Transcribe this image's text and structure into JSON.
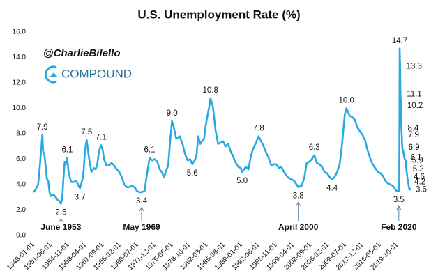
{
  "chart_data": {
    "type": "line",
    "title": "U.S. Unemployment Rate (%)",
    "watermark": {
      "handle": "@CharlieBilello",
      "company": "COMPOUND"
    },
    "xlim": [
      "1948-01-01",
      "2022-08-01"
    ],
    "xticks": [
      "1948-01-01",
      "1951-06-01",
      "1954-11-01",
      "1958-04-01",
      "1961-09-01",
      "1965-02-01",
      "1968-07-01",
      "1971-12-01",
      "1975-05-01",
      "1978-10-01",
      "1982-03-01",
      "1985-08-01",
      "1989-01-01",
      "1992-06-01",
      "1995-11-01",
      "1999-04-01",
      "2002-09-01",
      "2006-02-01",
      "2009-07-01",
      "2012-12-01",
      "2016-05-01",
      "2019-10-01"
    ],
    "ylim": [
      0,
      16
    ],
    "yticks": [
      {
        "value": 0,
        "label": "0.0"
      },
      {
        "value": 2,
        "label": "2.0"
      },
      {
        "value": 4,
        "label": "4.0"
      },
      {
        "value": 6,
        "label": "6.0"
      },
      {
        "value": 8,
        "label": "8.0"
      },
      {
        "value": 10,
        "label": "10.0"
      },
      {
        "value": 12,
        "label": "12.0"
      },
      {
        "value": 14,
        "label": "14.0"
      },
      {
        "value": 16,
        "label": "16.0"
      }
    ],
    "grid": false,
    "x": [
      "1948-01-01",
      "1948-06-01",
      "1948-12-01",
      "1949-03-01",
      "1949-07-01",
      "1949-10-01",
      "1949-12-01",
      "1950-03-01",
      "1950-06-01",
      "1950-09-01",
      "1950-12-01",
      "1951-03-01",
      "1951-06-01",
      "1951-09-01",
      "1952-01-01",
      "1952-06-01",
      "1952-10-01",
      "1953-03-01",
      "1953-06-01",
      "1953-09-01",
      "1953-12-01",
      "1954-03-01",
      "1954-06-01",
      "1954-09-01",
      "1954-12-01",
      "1955-06-01",
      "1955-12-01",
      "1956-06-01",
      "1957-03-01",
      "1957-09-01",
      "1957-12-01",
      "1958-03-01",
      "1958-07-01",
      "1958-10-01",
      "1959-01-01",
      "1959-06-01",
      "1959-12-01",
      "1960-04-01",
      "1960-08-01",
      "1960-12-01",
      "1961-05-01",
      "1961-09-01",
      "1961-12-01",
      "1962-06-01",
      "1962-12-01",
      "1963-06-01",
      "1963-12-01",
      "1964-06-01",
      "1964-12-01",
      "1965-06-01",
      "1965-12-01",
      "1966-06-01",
      "1966-12-01",
      "1967-06-01",
      "1967-12-01",
      "1968-06-01",
      "1968-12-01",
      "1969-05-01",
      "1969-12-01",
      "1970-06-01",
      "1970-12-01",
      "1971-06-01",
      "1971-12-01",
      "1972-06-01",
      "1972-12-01",
      "1973-06-01",
      "1973-10-01",
      "1974-03-01",
      "1974-08-01",
      "1974-12-01",
      "1975-05-01",
      "1975-10-01",
      "1976-03-01",
      "1976-11-01",
      "1977-06-01",
      "1977-12-01",
      "1978-06-01",
      "1978-12-01",
      "1979-05-01",
      "1979-12-01",
      "1980-03-01",
      "1980-07-01",
      "1980-12-01",
      "1981-06-01",
      "1981-09-01",
      "1981-12-01",
      "1982-06-01",
      "1982-09-01",
      "1982-12-01",
      "1983-06-01",
      "1983-12-01",
      "1984-06-01",
      "1984-12-01",
      "1985-06-01",
      "1985-12-01",
      "1986-06-01",
      "1986-12-01",
      "1987-06-01",
      "1987-12-01",
      "1988-06-01",
      "1988-12-01",
      "1989-03-01",
      "1989-12-01",
      "1990-06-01",
      "1990-12-01",
      "1991-06-01",
      "1991-12-01",
      "1992-06-01",
      "1992-12-01",
      "1993-06-01",
      "1993-12-01",
      "1994-06-01",
      "1994-12-01",
      "1995-06-01",
      "1995-12-01",
      "1996-06-01",
      "1996-12-01",
      "1997-06-01",
      "1997-12-01",
      "1998-06-01",
      "1998-12-01",
      "1999-06-01",
      "1999-12-01",
      "2000-04-01",
      "2000-12-01",
      "2001-06-01",
      "2001-12-01",
      "2002-06-01",
      "2002-12-01",
      "2003-06-01",
      "2003-12-01",
      "2004-06-01",
      "2004-12-01",
      "2005-06-01",
      "2005-12-01",
      "2006-06-01",
      "2006-12-01",
      "2007-06-01",
      "2007-12-01",
      "2008-06-01",
      "2008-12-01",
      "2009-06-01",
      "2009-10-01",
      "2010-06-01",
      "2010-12-01",
      "2011-06-01",
      "2011-12-01",
      "2012-06-01",
      "2012-12-01",
      "2013-06-01",
      "2013-12-01",
      "2014-06-01",
      "2014-12-01",
      "2015-06-01",
      "2015-12-01",
      "2016-06-01",
      "2016-12-01",
      "2017-06-01",
      "2017-12-01",
      "2018-06-01",
      "2018-12-01",
      "2019-06-01",
      "2019-09-01",
      "2020-02-01",
      "2020-03-01",
      "2020-04-01",
      "2020-05-01",
      "2020-06-01",
      "2020-07-01",
      "2020-08-01",
      "2020-09-01",
      "2020-10-01",
      "2020-12-01",
      "2021-03-01",
      "2021-06-01",
      "2021-08-01",
      "2021-10-01",
      "2021-12-01",
      "2022-03-01",
      "2022-08-01"
    ],
    "series": [
      {
        "name": "Unemployment Rate",
        "color": "#29a9e1",
        "values": [
          3.4,
          3.6,
          4.0,
          5.0,
          6.7,
          7.9,
          6.6,
          6.3,
          5.4,
          4.4,
          4.3,
          3.4,
          3.1,
          3.2,
          3.2,
          3.0,
          2.8,
          2.7,
          2.5,
          2.9,
          4.5,
          5.8,
          5.6,
          6.1,
          5.0,
          4.2,
          4.2,
          4.3,
          3.7,
          4.4,
          5.2,
          6.7,
          7.5,
          6.7,
          6.0,
          5.0,
          5.3,
          5.2,
          5.6,
          6.6,
          7.1,
          6.7,
          6.0,
          5.5,
          5.5,
          5.7,
          5.5,
          5.2,
          5.0,
          4.6,
          4.0,
          3.8,
          3.8,
          3.9,
          3.8,
          3.5,
          3.4,
          3.4,
          3.5,
          4.9,
          6.1,
          5.9,
          6.0,
          5.8,
          5.2,
          4.9,
          4.6,
          5.1,
          5.5,
          7.2,
          9.0,
          8.4,
          7.6,
          7.8,
          7.2,
          6.4,
          5.9,
          6.0,
          5.6,
          6.0,
          6.3,
          7.8,
          7.2,
          7.5,
          7.6,
          8.5,
          9.6,
          10.1,
          10.8,
          10.1,
          8.3,
          7.2,
          7.3,
          7.4,
          7.0,
          7.2,
          6.6,
          6.2,
          5.7,
          5.4,
          5.3,
          5.0,
          5.4,
          5.2,
          6.3,
          6.9,
          7.3,
          7.8,
          7.4,
          7.0,
          6.5,
          6.1,
          5.5,
          5.6,
          5.6,
          5.3,
          5.4,
          5.0,
          4.7,
          4.5,
          4.4,
          4.3,
          4.0,
          3.8,
          3.9,
          4.5,
          5.7,
          5.8,
          6.0,
          6.3,
          5.7,
          5.6,
          5.4,
          5.0,
          4.9,
          4.6,
          4.4,
          4.6,
          5.0,
          5.6,
          7.3,
          9.5,
          10.0,
          9.4,
          9.3,
          9.1,
          8.5,
          8.2,
          7.9,
          7.5,
          6.7,
          6.1,
          5.6,
          5.3,
          5.0,
          4.9,
          4.7,
          4.3,
          4.1,
          4.0,
          3.9,
          3.6,
          3.5,
          3.5,
          4.4,
          14.7,
          13.3,
          11.1,
          10.2,
          8.4,
          7.9,
          6.9,
          6.7,
          6.1,
          5.9,
          5.2,
          4.6,
          4.2,
          3.6,
          3.7
        ],
        "value_labels": [
          null,
          null,
          null,
          null,
          null,
          "7.9",
          null,
          null,
          null,
          null,
          null,
          null,
          null,
          null,
          null,
          null,
          null,
          null,
          "2.5",
          null,
          null,
          null,
          null,
          "6.1",
          null,
          null,
          null,
          null,
          "3.7",
          null,
          null,
          null,
          "7.5",
          null,
          null,
          null,
          null,
          null,
          null,
          null,
          "7.1",
          null,
          null,
          null,
          null,
          null,
          null,
          null,
          null,
          null,
          null,
          null,
          null,
          null,
          null,
          null,
          null,
          "3.4",
          null,
          null,
          "6.1",
          null,
          null,
          null,
          null,
          null,
          null,
          null,
          null,
          null,
          "9.0",
          null,
          null,
          null,
          null,
          null,
          null,
          null,
          "5.6",
          null,
          null,
          null,
          null,
          null,
          null,
          null,
          null,
          null,
          "10.8",
          null,
          null,
          null,
          null,
          null,
          null,
          null,
          null,
          null,
          null,
          null,
          null,
          "5.0",
          null,
          null,
          null,
          null,
          null,
          "7.8",
          null,
          null,
          null,
          null,
          null,
          null,
          null,
          null,
          null,
          null,
          null,
          null,
          null,
          null,
          null,
          "3.8",
          null,
          null,
          null,
          null,
          null,
          "6.3",
          null,
          null,
          null,
          null,
          null,
          null,
          "4.4",
          null,
          null,
          null,
          null,
          null,
          "10.0",
          null,
          null,
          null,
          null,
          null,
          null,
          null,
          null,
          null,
          null,
          null,
          null,
          null,
          null,
          null,
          null,
          null,
          null,
          null,
          null,
          "3.5",
          null,
          "14.7",
          "13.3",
          "11.1",
          "10.2",
          "8.4",
          "7.9",
          "6.9",
          null,
          "6.1",
          "5.9",
          "5.2",
          "4.6",
          "4.2",
          "3.6",
          null
        ]
      }
    ],
    "annotations": [
      {
        "text": "June 1953",
        "x": "1953-06-01"
      },
      {
        "text": "May 1969",
        "x": "1969-05-01"
      },
      {
        "text": "April 2000",
        "x": "2000-04-01"
      },
      {
        "text": "Feb 2020",
        "x": "2020-02-01"
      }
    ]
  }
}
